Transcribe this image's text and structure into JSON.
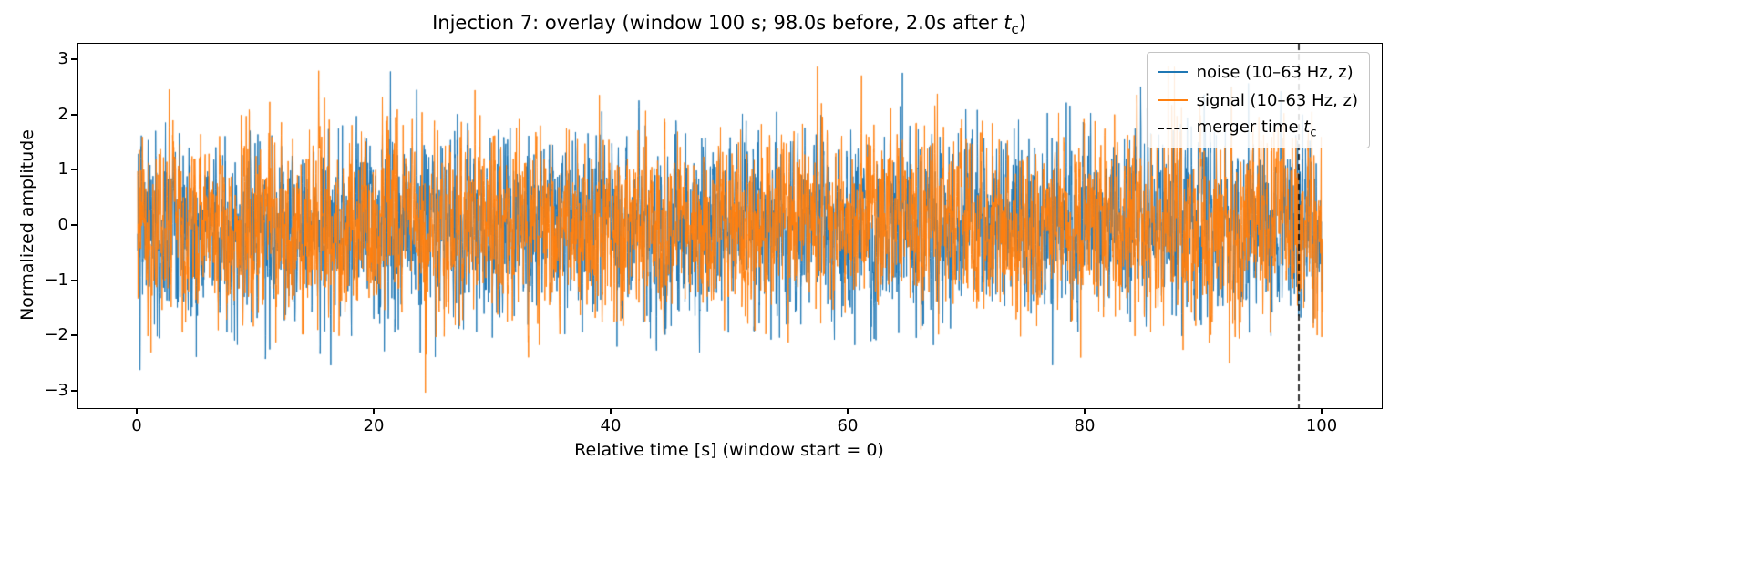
{
  "chart_data": {
    "type": "line",
    "title": "Injection 7: overlay (window 100 s; 98.0s before, 2.0s after t_c)",
    "title_parts": {
      "prefix": "Injection 7: overlay (window 100 s; 98.0s before, 2.0s after ",
      "var": "t",
      "sub": "c",
      "suffix": ")"
    },
    "xlabel": "Relative time [s] (window start = 0)",
    "ylabel": "Normalized amplitude",
    "xlim": [
      -5,
      105
    ],
    "ylim": [
      -3.3,
      3.3
    ],
    "xticks": [
      0,
      20,
      40,
      60,
      80,
      100
    ],
    "yticks": [
      -3,
      -2,
      -1,
      0,
      1,
      2,
      3
    ],
    "grid": false,
    "x_range": [
      0,
      100
    ],
    "n_points": 6000,
    "series": [
      {
        "name": "noise (10–63 Hz, z)",
        "color": "#1f77b4",
        "kind": "band-passed z-scored Gaussian noise",
        "mean": 0,
        "std": 1,
        "approx_peak_amplitude": 3.0,
        "seed": 101
      },
      {
        "name": "signal (10–63 Hz, z)",
        "color": "#ff7f0e",
        "kind": "band-passed z-scored noise + injected signal (visually noise-dominated)",
        "mean": 0,
        "std": 1,
        "approx_peak_amplitude": 3.0,
        "seed": 202
      }
    ],
    "vline": {
      "x": 98.0,
      "style": "dashed",
      "color": "#000000"
    },
    "window_s": 100,
    "before_s": 98.0,
    "after_s": 2.0,
    "data_note": "Dense overlapping noise traces spanning 0–100 s; solid band within roughly ±1.8 with spikes to about ±3; orange drawn over blue; dashed black vertical merger-time line at t = 98 s."
  },
  "legend": {
    "position": "upper right",
    "entries": [
      {
        "label": "noise (10–63 Hz, z)",
        "color": "#1f77b4",
        "line": "solid"
      },
      {
        "label": "signal (10–63 Hz, z)",
        "color": "#ff7f0e",
        "line": "solid"
      },
      {
        "label_prefix": "merger time ",
        "label_var": "t",
        "label_sub": "c",
        "color": "#000000",
        "line": "dashed"
      }
    ]
  }
}
